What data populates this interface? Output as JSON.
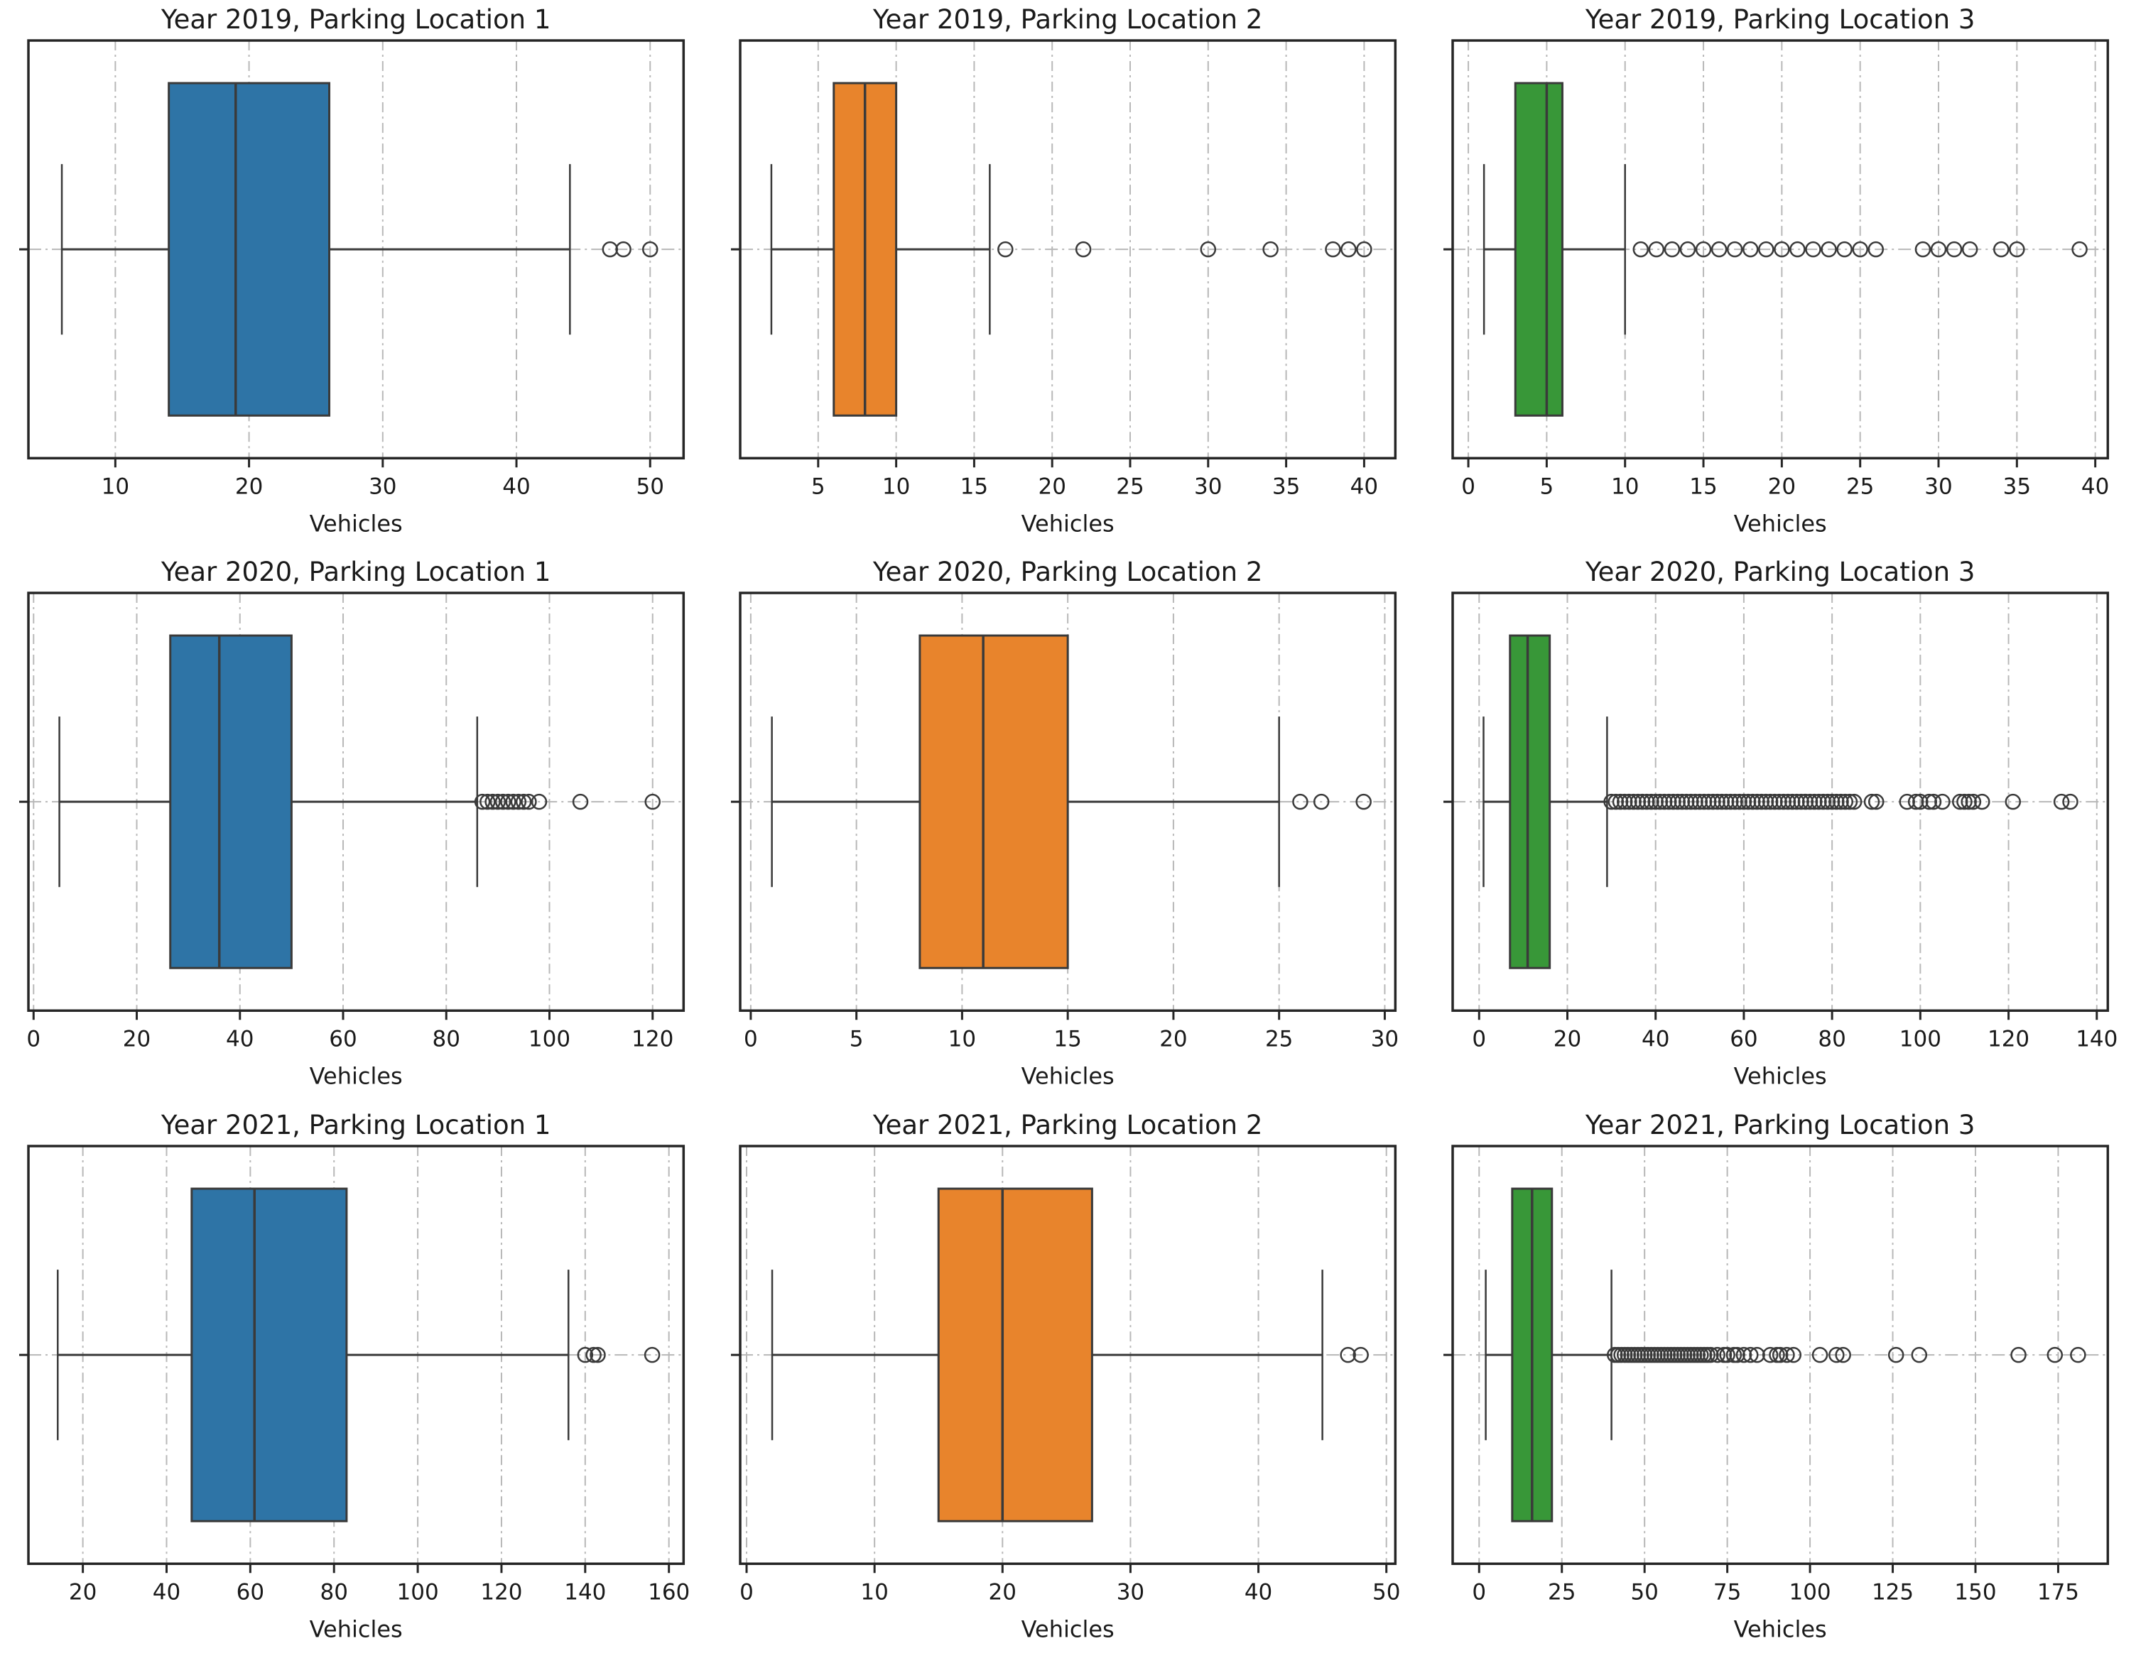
{
  "figure": {
    "rows": 3,
    "cols": 3,
    "background": "#ffffff"
  },
  "style": {
    "spine_color": "#262626",
    "grid_color": "#b8b8b8",
    "text_color": "#1a1a1a",
    "line_color": "#3a3a3a",
    "flier_edge_color": "#3a3a3a",
    "blue": "#2e74a6",
    "orange": "#e8842c",
    "green": "#389738"
  },
  "chart_data": [
    {
      "type": "boxplot",
      "orientation": "horizontal",
      "title": "Year 2019, Parking Location 1",
      "xlabel": "Vehicles",
      "color": "#2e74a6",
      "xlim": [
        3.5,
        52.5
      ],
      "xticks": [
        10,
        20,
        30,
        40,
        50
      ],
      "box": {
        "whislo": 6,
        "q1": 14,
        "med": 19,
        "q3": 26,
        "whishi": 44
      },
      "outliers": [
        47,
        48,
        50
      ]
    },
    {
      "type": "boxplot",
      "orientation": "horizontal",
      "title": "Year 2019, Parking Location 2",
      "xlabel": "Vehicles",
      "color": "#e8842c",
      "xlim": [
        0,
        42
      ],
      "xticks": [
        5,
        10,
        15,
        20,
        25,
        30,
        35,
        40
      ],
      "box": {
        "whislo": 2,
        "q1": 6,
        "med": 8,
        "q3": 10,
        "whishi": 16
      },
      "outliers": [
        17,
        22,
        30,
        34,
        38,
        39,
        40
      ]
    },
    {
      "type": "boxplot",
      "orientation": "horizontal",
      "title": "Year 2019, Parking Location 3",
      "xlabel": "Vehicles",
      "color": "#389738",
      "xlim": [
        -1,
        40.8
      ],
      "xticks": [
        0,
        5,
        10,
        15,
        20,
        25,
        30,
        35,
        40
      ],
      "box": {
        "whislo": 1,
        "q1": 3,
        "med": 5,
        "q3": 6,
        "whishi": 10
      },
      "outliers": [
        11,
        12,
        13,
        14,
        15,
        16,
        17,
        18,
        19,
        20,
        21,
        22,
        23,
        24,
        25,
        26,
        29,
        30,
        31,
        32,
        34,
        35,
        39
      ]
    },
    {
      "type": "boxplot",
      "orientation": "horizontal",
      "title": "Year 2020, Parking Location 1",
      "xlabel": "Vehicles",
      "color": "#2e74a6",
      "xlim": [
        -1,
        126
      ],
      "xticks": [
        0,
        20,
        40,
        60,
        80,
        100,
        120
      ],
      "box": {
        "whislo": 5,
        "q1": 26.5,
        "med": 36,
        "q3": 50,
        "whishi": 86
      },
      "outliers": [
        87,
        88,
        89,
        90,
        91,
        92,
        93,
        94,
        95,
        96,
        98,
        106,
        120
      ]
    },
    {
      "type": "boxplot",
      "orientation": "horizontal",
      "title": "Year 2020, Parking Location 2",
      "xlabel": "Vehicles",
      "color": "#e8842c",
      "xlim": [
        -0.5,
        30.5
      ],
      "xticks": [
        0,
        5,
        10,
        15,
        20,
        25,
        30
      ],
      "box": {
        "whislo": 1,
        "q1": 8,
        "med": 11,
        "q3": 15,
        "whishi": 25
      },
      "outliers": [
        26,
        27,
        29
      ]
    },
    {
      "type": "boxplot",
      "orientation": "horizontal",
      "title": "Year 2020, Parking Location 3",
      "xlabel": "Vehicles",
      "color": "#389738",
      "xlim": [
        -6,
        142.5
      ],
      "xticks": [
        0,
        20,
        40,
        60,
        80,
        100,
        120,
        140
      ],
      "box": {
        "whislo": 1,
        "q1": 7,
        "med": 11,
        "q3": 16,
        "whishi": 29
      },
      "outliers": [
        30,
        31,
        32,
        33,
        34,
        35,
        36,
        37,
        38,
        39,
        40,
        41,
        42,
        43,
        44,
        45,
        46,
        47,
        48,
        49,
        50,
        51,
        52,
        53,
        54,
        55,
        56,
        57,
        58,
        59,
        60,
        61,
        62,
        63,
        64,
        65,
        66,
        67,
        68,
        69,
        70,
        71,
        72,
        73,
        74,
        75,
        76,
        77,
        78,
        79,
        80,
        81,
        82,
        83,
        84,
        85,
        89,
        90,
        97,
        99,
        100,
        102,
        103,
        105,
        109,
        110,
        111,
        112,
        114,
        121,
        132,
        134
      ]
    },
    {
      "type": "boxplot",
      "orientation": "horizontal",
      "title": "Year 2021, Parking Location 1",
      "xlabel": "Vehicles",
      "color": "#2e74a6",
      "xlim": [
        7,
        163.5
      ],
      "xticks": [
        20,
        40,
        60,
        80,
        100,
        120,
        140,
        160
      ],
      "box": {
        "whislo": 14,
        "q1": 46,
        "med": 61,
        "q3": 83,
        "whishi": 136
      },
      "outliers": [
        140,
        142,
        143,
        156
      ]
    },
    {
      "type": "boxplot",
      "orientation": "horizontal",
      "title": "Year 2021, Parking Location 2",
      "xlabel": "Vehicles",
      "color": "#e8842c",
      "xlim": [
        -0.5,
        50.7
      ],
      "xticks": [
        0,
        10,
        20,
        30,
        40,
        50
      ],
      "box": {
        "whislo": 2,
        "q1": 15,
        "med": 20,
        "q3": 27,
        "whishi": 45
      },
      "outliers": [
        47,
        48
      ]
    },
    {
      "type": "boxplot",
      "orientation": "horizontal",
      "title": "Year 2021, Parking Location 3",
      "xlabel": "Vehicles",
      "color": "#389738",
      "xlim": [
        -8,
        190
      ],
      "xticks": [
        0,
        25,
        50,
        75,
        100,
        125,
        150,
        175
      ],
      "box": {
        "whislo": 2,
        "q1": 10,
        "med": 16,
        "q3": 22,
        "whishi": 40
      },
      "outliers": [
        41,
        42,
        43,
        44,
        45,
        46,
        47,
        48,
        49,
        50,
        51,
        52,
        53,
        54,
        55,
        56,
        57,
        58,
        59,
        60,
        61,
        62,
        63,
        64,
        65,
        66,
        67,
        68,
        69,
        70,
        72,
        74,
        75,
        77,
        78,
        80,
        82,
        84,
        88,
        90,
        91,
        93,
        95,
        103,
        108,
        110,
        126,
        133,
        163,
        174,
        181
      ]
    }
  ]
}
